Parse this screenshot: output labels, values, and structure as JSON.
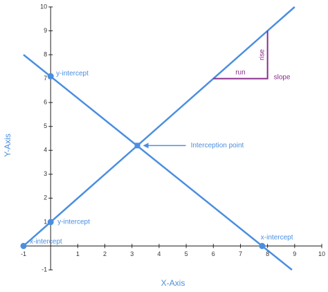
{
  "chart_data": {
    "type": "line",
    "xlabel": "X-Axis",
    "ylabel": "Y-Axis",
    "xlim": [
      -1,
      10
    ],
    "ylim": [
      -1,
      10
    ],
    "xticks": [
      -1,
      1,
      2,
      3,
      4,
      5,
      6,
      7,
      8,
      9,
      10
    ],
    "yticks": [
      -1,
      1,
      2,
      3,
      4,
      5,
      6,
      7,
      8,
      9,
      10
    ],
    "series": [
      {
        "color": "#4a8ee0",
        "x": [
          -1,
          9
        ],
        "values": [
          0,
          10
        ]
      },
      {
        "color": "#4a8ee0",
        "x": [
          -1,
          8.9
        ],
        "values": [
          8,
          -1
        ]
      }
    ],
    "points": [
      {
        "x": -1,
        "y": 0,
        "label": "x-intercept"
      },
      {
        "x": 0,
        "y": 1,
        "label": "y-intercept"
      },
      {
        "x": 0,
        "y": 7.1,
        "label": "y-intercept"
      },
      {
        "x": 3.2,
        "y": 4.2,
        "label": "Interception point"
      },
      {
        "x": 7.8,
        "y": 0,
        "label": "x-intercept"
      }
    ],
    "slope_triangle": {
      "color": "#8b2c8c",
      "x": [
        6,
        8,
        8
      ],
      "y": [
        7,
        7,
        9
      ],
      "run_label": "run",
      "rise_label": "rise",
      "slope_label": "slope"
    }
  }
}
